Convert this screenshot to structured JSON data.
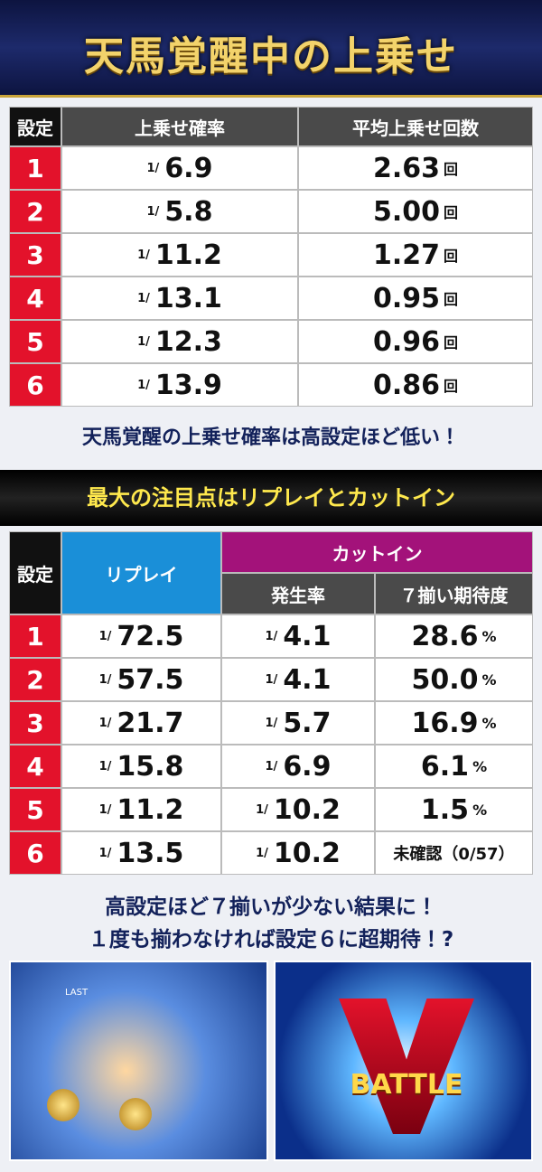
{
  "header": {
    "title": "天馬覚醒中の上乗せ"
  },
  "table1": {
    "columns": [
      "設定",
      "上乗せ確率",
      "平均上乗せ回数"
    ],
    "prefix": "1/",
    "unit": "回",
    "rows": [
      [
        "1",
        "6.9",
        "2.63"
      ],
      [
        "2",
        "5.8",
        "5.00"
      ],
      [
        "3",
        "11.2",
        "1.27"
      ],
      [
        "4",
        "13.1",
        "0.95"
      ],
      [
        "5",
        "12.3",
        "0.96"
      ],
      [
        "6",
        "13.9",
        "0.86"
      ]
    ]
  },
  "note1": "天馬覚醒の上乗せ確率は高設定ほど低い！",
  "section2": {
    "title": "最大の注目点はリプレイとカットイン"
  },
  "table2": {
    "columns": [
      "設定",
      "リプレイ",
      "カットイン"
    ],
    "subcolumns": [
      "発生率",
      "７揃い期待度"
    ],
    "prefix": "1/",
    "rows": [
      {
        "setting": "1",
        "replay": "72.5",
        "cutin": "4.1",
        "expect": "28.6",
        "unit": "%"
      },
      {
        "setting": "2",
        "replay": "57.5",
        "cutin": "4.1",
        "expect": "50.0",
        "unit": "%"
      },
      {
        "setting": "3",
        "replay": "21.7",
        "cutin": "5.7",
        "expect": "16.9",
        "unit": "%"
      },
      {
        "setting": "4",
        "replay": "15.8",
        "cutin": "6.9",
        "expect": "6.1",
        "unit": "%"
      },
      {
        "setting": "5",
        "replay": "11.2",
        "cutin": "10.2",
        "expect": "1.5",
        "unit": "%"
      },
      {
        "setting": "6",
        "replay": "13.5",
        "cutin": "10.2",
        "expect": "未確認（0/57）"
      }
    ]
  },
  "footer": [
    "高設定ほど７揃いが少ない結果に！",
    "１度も揃わなければ設定６に超期待！?"
  ],
  "images": [
    {
      "label": "LAST"
    },
    {
      "label": "BATTLE"
    }
  ]
}
